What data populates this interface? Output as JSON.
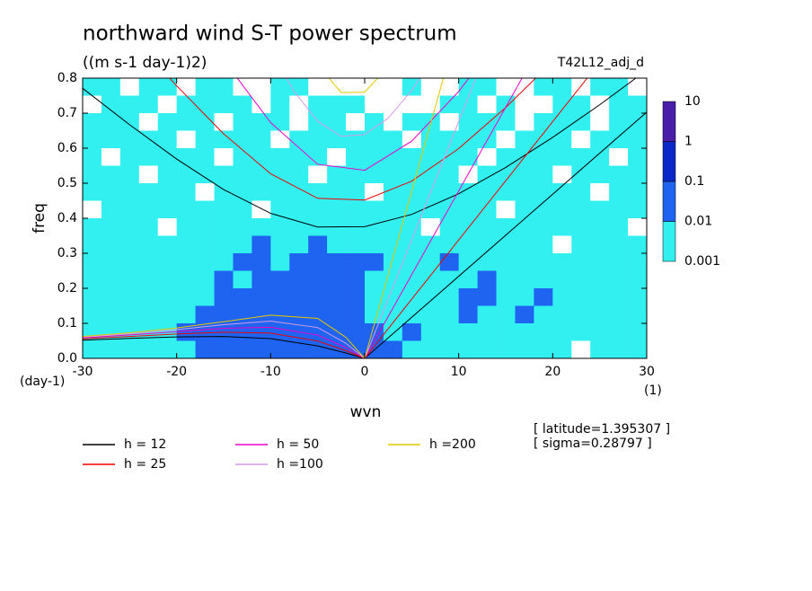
{
  "chart_data": {
    "type": "contour",
    "title": "northward wind S-T power spectrum",
    "subtitle": "((m s-1 day-1)2)",
    "run_label": "T42L12_adj_d",
    "xlabel": "wvn",
    "ylabel": "freq",
    "y_unit": "(day-1)",
    "x_unit": "(1)",
    "annotations": [
      "[ latitude=1.395307 ]",
      "[ sigma=0.28797 ]"
    ],
    "xlim": [
      -30,
      30
    ],
    "ylim": [
      0,
      0.8
    ],
    "xticks": [
      -30,
      -20,
      -10,
      0,
      10,
      20,
      30
    ],
    "yticks": [
      {
        "value": 0,
        "label": "0.0"
      },
      0.1,
      0.2,
      0.3,
      0.4,
      0.5,
      0.6,
      0.7,
      0.8
    ],
    "colorbar": {
      "levels": [
        0.001,
        0.01,
        0.1,
        1,
        10
      ],
      "colors": [
        "#33f0f0",
        "#1f64f0",
        "#0a28c8",
        "#4b1eaa"
      ]
    },
    "field": {
      "x": [
        -29,
        -27,
        -25,
        -23,
        -21,
        -19,
        -17,
        -15,
        -13,
        -11,
        -9,
        -7,
        -5,
        -3,
        -1,
        1,
        3,
        5,
        7,
        9,
        11,
        13,
        15,
        17,
        19,
        21,
        23,
        25,
        27,
        29
      ],
      "y": [
        0.775,
        0.725,
        0.675,
        0.625,
        0.575,
        0.525,
        0.475,
        0.425,
        0.375,
        0.325,
        0.275,
        0.225,
        0.175,
        0.125,
        0.075,
        0.025
      ],
      "z": [
        [
          0.005,
          0.005,
          0.0005,
          0.005,
          0.005,
          0.0005,
          0.005,
          0.005,
          0.0005,
          0.0005,
          0.005,
          0.005,
          0.0005,
          0.0005,
          0.0005,
          0.0005,
          0.0005,
          0.005,
          0.0005,
          0.0005,
          0.005,
          0.005,
          0.0005,
          0.0005,
          0.005,
          0.005,
          0.0005,
          0.005,
          0.005,
          0.0005
        ],
        [
          0.0005,
          0.005,
          0.005,
          0.005,
          0.0005,
          0.005,
          0.005,
          0.005,
          0.005,
          0.0005,
          0.005,
          0.0005,
          0.005,
          0.005,
          0.005,
          0.0005,
          0.0005,
          0.0005,
          0.0005,
          0.005,
          0.005,
          0.0005,
          0.005,
          0.0005,
          0.0005,
          0.005,
          0.005,
          0.0005,
          0.005,
          0.005
        ],
        [
          0.005,
          0.005,
          0.005,
          0.0005,
          0.005,
          0.005,
          0.005,
          0.0005,
          0.005,
          0.005,
          0.005,
          0.0005,
          0.005,
          0.005,
          0.0005,
          0.005,
          0.0005,
          0.005,
          0.005,
          0.0005,
          0.005,
          0.005,
          0.005,
          0.0005,
          0.005,
          0.005,
          0.005,
          0.0005,
          0.005,
          0.005
        ],
        [
          0.005,
          0.005,
          0.005,
          0.005,
          0.005,
          0.0005,
          0.005,
          0.005,
          0.005,
          0.005,
          0.0005,
          0.005,
          0.005,
          0.005,
          0.005,
          0.005,
          0.005,
          0.0005,
          0.005,
          0.005,
          0.005,
          0.005,
          0.0005,
          0.005,
          0.005,
          0.005,
          0.0005,
          0.005,
          0.005,
          0.005
        ],
        [
          0.005,
          0.0005,
          0.005,
          0.005,
          0.005,
          0.005,
          0.005,
          0.0005,
          0.005,
          0.005,
          0.005,
          0.005,
          0.005,
          0.0005,
          0.005,
          0.005,
          0.005,
          0.005,
          0.005,
          0.005,
          0.005,
          0.0005,
          0.005,
          0.005,
          0.005,
          0.005,
          0.005,
          0.005,
          0.0005,
          0.005
        ],
        [
          0.005,
          0.005,
          0.005,
          0.0005,
          0.005,
          0.005,
          0.005,
          0.005,
          0.005,
          0.005,
          0.005,
          0.005,
          0.0005,
          0.005,
          0.005,
          0.005,
          0.005,
          0.005,
          0.005,
          0.005,
          0.0005,
          0.005,
          0.005,
          0.005,
          0.005,
          0.0005,
          0.005,
          0.005,
          0.005,
          0.005
        ],
        [
          0.005,
          0.005,
          0.005,
          0.005,
          0.005,
          0.005,
          0.0005,
          0.005,
          0.005,
          0.005,
          0.005,
          0.005,
          0.005,
          0.005,
          0.005,
          0.0005,
          0.005,
          0.005,
          0.005,
          0.005,
          0.005,
          0.005,
          0.005,
          0.005,
          0.005,
          0.005,
          0.005,
          0.0005,
          0.005,
          0.005
        ],
        [
          0.0005,
          0.005,
          0.005,
          0.005,
          0.005,
          0.005,
          0.005,
          0.005,
          0.005,
          0.0005,
          0.005,
          0.005,
          0.005,
          0.005,
          0.005,
          0.005,
          0.005,
          0.005,
          0.005,
          0.005,
          0.005,
          0.005,
          0.0005,
          0.005,
          0.005,
          0.005,
          0.005,
          0.005,
          0.005,
          0.005
        ],
        [
          0.005,
          0.005,
          0.005,
          0.005,
          0.0005,
          0.005,
          0.005,
          0.005,
          0.005,
          0.005,
          0.005,
          0.005,
          0.005,
          0.005,
          0.005,
          0.005,
          0.005,
          0.005,
          0.0005,
          0.005,
          0.005,
          0.005,
          0.005,
          0.005,
          0.005,
          0.005,
          0.005,
          0.005,
          0.005,
          0.0005
        ],
        [
          0.005,
          0.005,
          0.005,
          0.005,
          0.005,
          0.005,
          0.005,
          0.005,
          0.005,
          0.05,
          0.005,
          0.005,
          0.05,
          0.005,
          0.005,
          0.005,
          0.005,
          0.005,
          0.005,
          0.005,
          0.005,
          0.005,
          0.005,
          0.005,
          0.005,
          0.0005,
          0.005,
          0.005,
          0.005,
          0.005
        ],
        [
          0.005,
          0.005,
          0.005,
          0.005,
          0.005,
          0.005,
          0.005,
          0.005,
          0.05,
          0.05,
          0.005,
          0.05,
          0.05,
          0.05,
          0.05,
          0.05,
          0.005,
          0.005,
          0.005,
          0.05,
          0.005,
          0.005,
          0.005,
          0.005,
          0.005,
          0.005,
          0.005,
          0.005,
          0.005,
          0.005
        ],
        [
          0.005,
          0.005,
          0.005,
          0.005,
          0.005,
          0.005,
          0.005,
          0.05,
          0.005,
          0.05,
          0.05,
          0.05,
          0.05,
          0.05,
          0.05,
          0.005,
          0.005,
          0.005,
          0.005,
          0.005,
          0.005,
          0.05,
          0.005,
          0.005,
          0.005,
          0.005,
          0.005,
          0.005,
          0.005,
          0.005
        ],
        [
          0.005,
          0.005,
          0.005,
          0.005,
          0.005,
          0.005,
          0.005,
          0.05,
          0.05,
          0.05,
          0.05,
          0.05,
          0.05,
          0.05,
          0.05,
          0.005,
          0.005,
          0.005,
          0.005,
          0.005,
          0.05,
          0.05,
          0.005,
          0.005,
          0.05,
          0.005,
          0.005,
          0.005,
          0.005,
          0.005
        ],
        [
          0.005,
          0.005,
          0.005,
          0.005,
          0.005,
          0.005,
          0.05,
          0.05,
          0.05,
          0.05,
          0.05,
          0.05,
          0.05,
          0.05,
          0.05,
          0.005,
          0.005,
          0.005,
          0.005,
          0.005,
          0.05,
          0.005,
          0.005,
          0.05,
          0.005,
          0.005,
          0.005,
          0.005,
          0.005,
          0.005
        ],
        [
          0.005,
          0.005,
          0.005,
          0.005,
          0.005,
          0.05,
          0.05,
          0.05,
          0.05,
          0.05,
          0.05,
          0.05,
          0.05,
          0.05,
          0.05,
          0.05,
          0.005,
          0.05,
          0.005,
          0.005,
          0.005,
          0.005,
          0.005,
          0.005,
          0.005,
          0.005,
          0.005,
          0.005,
          0.005,
          0.005
        ],
        [
          0.005,
          0.005,
          0.005,
          0.005,
          0.005,
          0.005,
          0.05,
          0.05,
          0.05,
          0.05,
          0.05,
          0.05,
          0.05,
          0.05,
          0.05,
          0.05,
          0.05,
          0.005,
          0.005,
          0.005,
          0.005,
          0.005,
          0.005,
          0.005,
          0.005,
          0.005,
          0.0005,
          0.005,
          0.005,
          0.005
        ]
      ]
    },
    "curves": [
      {
        "name": "h = 12",
        "color": "#000000",
        "kelvin": {
          "x": [
            0,
            30
          ],
          "y": [
            0,
            0.703
          ]
        },
        "ig": {
          "x": [
            -30,
            -25,
            -20,
            -15,
            -10,
            -5,
            0,
            5,
            10,
            15,
            20,
            25,
            30
          ],
          "y": [
            0.771,
            0.667,
            0.569,
            0.482,
            0.414,
            0.375,
            0.376,
            0.411,
            0.47,
            0.545,
            0.631,
            0.724,
            0.823
          ]
        },
        "rossby": {
          "x": [
            -30,
            -25,
            -20,
            -15,
            -10,
            -5,
            -2,
            0
          ],
          "y": [
            0.052,
            0.0569,
            0.0611,
            0.0625,
            0.0563,
            0.0356,
            0.0154,
            0
          ]
        }
      },
      {
        "name": "h = 25",
        "color": "#f00000",
        "kelvin": {
          "x": [
            0,
            23.67
          ],
          "y": [
            0,
            0.8
          ]
        },
        "ig": {
          "x": [
            -25,
            -20,
            -15,
            -10,
            -5,
            0,
            5,
            10,
            15,
            20
          ],
          "y": [
            0.927,
            0.778,
            0.641,
            0.527,
            0.457,
            0.452,
            0.506,
            0.599,
            0.716,
            0.848
          ]
        },
        "rossby": {
          "x": [
            -30,
            -25,
            -20,
            -15,
            -10,
            -5,
            -2,
            0
          ],
          "y": [
            0.0559,
            0.0625,
            0.0695,
            0.0747,
            0.0722,
            0.0495,
            0.0221,
            0
          ]
        }
      },
      {
        "name": "h = 50",
        "color": "#f000c8",
        "kelvin": {
          "x": [
            0,
            16.74
          ],
          "y": [
            0,
            0.8
          ]
        },
        "ig": {
          "x": [
            -15,
            -10,
            -5,
            0,
            5,
            10,
            15
          ],
          "y": [
            0.852,
            0.673,
            0.554,
            0.537,
            0.62,
            0.762,
            0.938
          ]
        },
        "rossby": {
          "x": [
            -30,
            -25,
            -20,
            -15,
            -10,
            -5,
            -2,
            0
          ],
          "y": [
            0.0587,
            0.0669,
            0.0764,
            0.0859,
            0.0889,
            0.0665,
            0.0309,
            0
          ]
        }
      },
      {
        "name": "h =100",
        "color": "#d89ce6",
        "kelvin": {
          "x": [
            0,
            11.83
          ],
          "y": [
            0,
            0.8
          ]
        },
        "ig": {
          "x": [
            -10,
            -7.5,
            -5,
            -2.5,
            0,
            2.5,
            5,
            7.5,
            10
          ],
          "y": [
            0.876,
            0.762,
            0.677,
            0.634,
            0.639,
            0.686,
            0.765,
            0.866,
            0.982
          ]
        },
        "rossby": {
          "x": [
            -30,
            -25,
            -20,
            -15,
            -10,
            -5,
            -2,
            0
          ],
          "y": [
            0.061,
            0.0703,
            0.0822,
            0.096,
            0.1063,
            0.088,
            0.0432,
            0
          ]
        }
      },
      {
        "name": "h =200",
        "color": "#e6c800",
        "kelvin": {
          "x": [
            0,
            8.37
          ],
          "y": [
            0,
            0.8
          ]
        },
        "ig": {
          "x": [
            -5,
            -2.5,
            0,
            2.5
          ],
          "y": [
            0.838,
            0.759,
            0.76,
            0.832
          ]
        },
        "rossby": {
          "x": [
            -30,
            -25,
            -20,
            -15,
            -10,
            -5,
            -2,
            0
          ],
          "y": [
            0.0626,
            0.073,
            0.0868,
            0.1047,
            0.1233,
            0.1142,
            0.06,
            0
          ]
        }
      }
    ]
  }
}
